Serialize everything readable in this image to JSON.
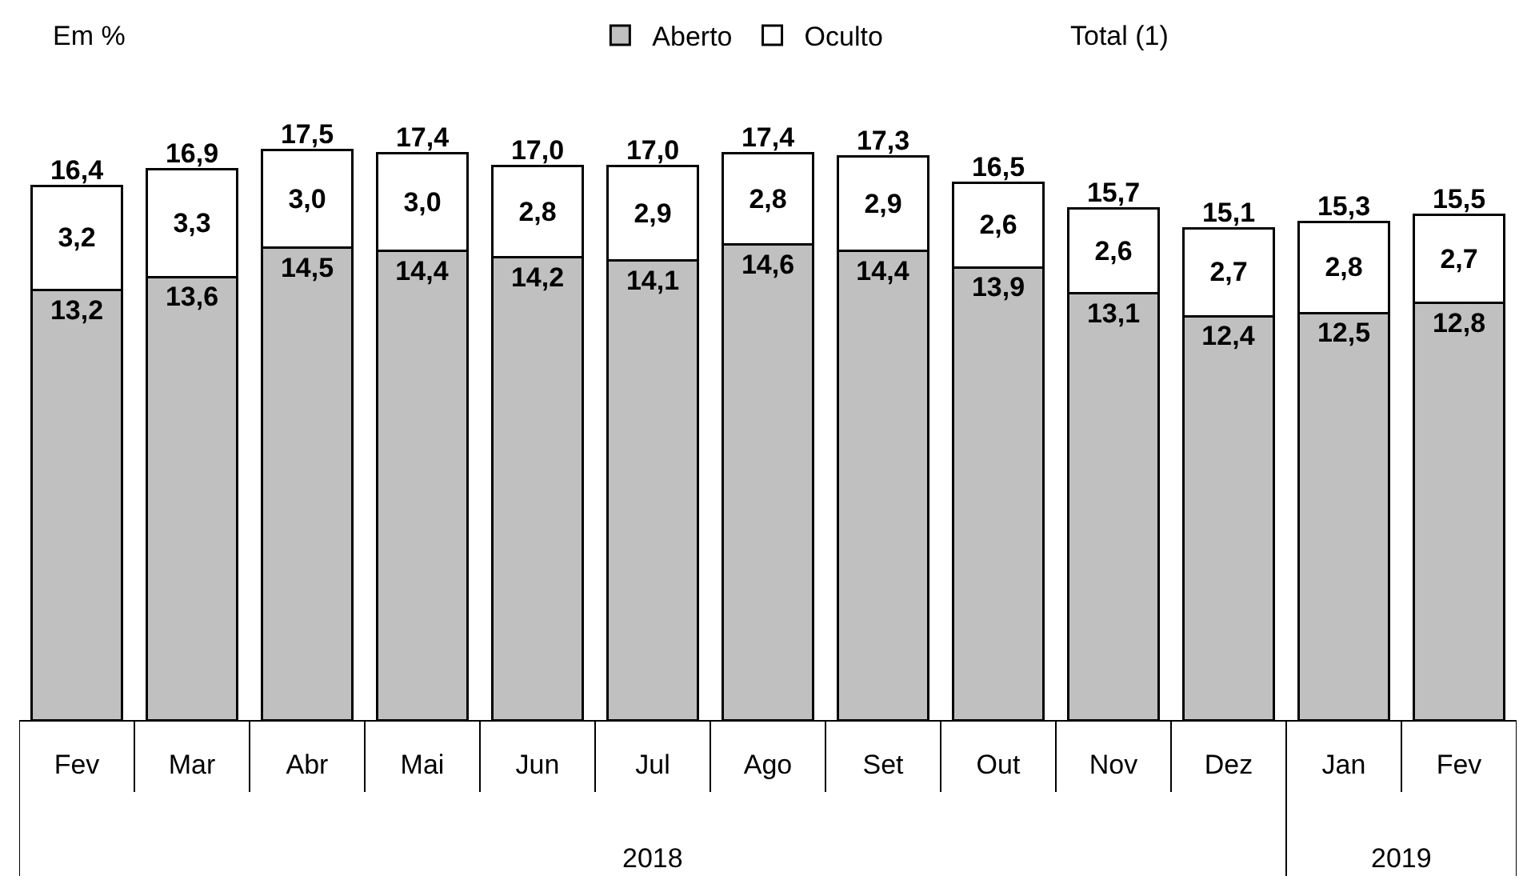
{
  "chart_data": {
    "type": "bar",
    "stacked": true,
    "ylabel": "Em %",
    "categories": [
      "Fev",
      "Mar",
      "Abr",
      "Mai",
      "Jun",
      "Jul",
      "Ago",
      "Set",
      "Out",
      "Nov",
      "Dez",
      "Jan",
      "Fev"
    ],
    "series": [
      {
        "name": "Aberto",
        "color": "#c0c0c0",
        "values": [
          13.2,
          13.6,
          14.5,
          14.4,
          14.2,
          14.1,
          14.6,
          14.4,
          13.9,
          13.1,
          12.4,
          12.5,
          12.8
        ],
        "value_labels": [
          "13,2",
          "13,6",
          "14,5",
          "14,4",
          "14,2",
          "14,1",
          "14,6",
          "14,4",
          "13,9",
          "13,1",
          "12,4",
          "12,5",
          "12,8"
        ]
      },
      {
        "name": "Oculto",
        "color": "#ffffff",
        "values": [
          3.2,
          3.3,
          3.0,
          3.0,
          2.8,
          2.9,
          2.8,
          2.9,
          2.6,
          2.6,
          2.7,
          2.8,
          2.7
        ],
        "value_labels": [
          "3,2",
          "3,3",
          "3,0",
          "3,0",
          "2,8",
          "2,9",
          "2,8",
          "2,9",
          "2,6",
          "2,6",
          "2,7",
          "2,8",
          "2,7"
        ]
      }
    ],
    "totals": [
      "16,4",
      "16,9",
      "17,5",
      "17,4",
      "17,0",
      "17,0",
      "17,4",
      "17,3",
      "16,5",
      "15,7",
      "15,1",
      "15,3",
      "15,5"
    ],
    "tick_labels": "x",
    "legend": "top",
    "annotations": [
      "Total (1)",
      "2018",
      "2019"
    ]
  }
}
